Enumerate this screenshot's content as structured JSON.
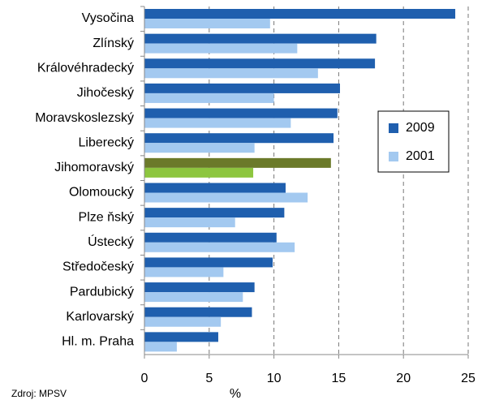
{
  "chart_data": {
    "type": "hbar",
    "categories": [
      "Vysočina",
      "Zlínský",
      "Královéhradecký",
      "Jihočeský",
      "Moravskoslezský",
      "Liberecký",
      "Jihomoravský",
      "Olomoucký",
      "Plze ňský",
      "Ústecký",
      "Středočeský",
      "Pardubický",
      "Karlovarský",
      "Hl. m. Praha"
    ],
    "series": [
      {
        "name": "2009",
        "color": "#1f5fae",
        "values": [
          24.0,
          17.9,
          17.8,
          15.1,
          14.9,
          14.6,
          14.4,
          10.9,
          10.8,
          10.2,
          9.9,
          8.5,
          8.3,
          5.7
        ],
        "colors": [
          "#1f5fae",
          "#1f5fae",
          "#1f5fae",
          "#1f5fae",
          "#1f5fae",
          "#1f5fae",
          "#6b7a2a",
          "#1f5fae",
          "#1f5fae",
          "#1f5fae",
          "#1f5fae",
          "#1f5fae",
          "#1f5fae",
          "#1f5fae"
        ]
      },
      {
        "name": "2001",
        "color": "#a3c9f0",
        "values": [
          9.7,
          11.8,
          13.4,
          10.0,
          11.3,
          8.5,
          8.4,
          12.6,
          7.0,
          11.6,
          6.1,
          7.6,
          5.9,
          2.5
        ],
        "colors": [
          "#a3c9f0",
          "#a3c9f0",
          "#a3c9f0",
          "#a3c9f0",
          "#a3c9f0",
          "#a3c9f0",
          "#8dc63f",
          "#a3c9f0",
          "#a3c9f0",
          "#a3c9f0",
          "#a3c9f0",
          "#a3c9f0",
          "#a3c9f0",
          "#a3c9f0"
        ]
      }
    ],
    "xlim": [
      0,
      25
    ],
    "xticks": [
      0,
      5,
      10,
      15,
      20,
      25
    ],
    "grid": true,
    "xlabel": "%",
    "source": "Zdroj: MPSV",
    "legend": "right"
  }
}
